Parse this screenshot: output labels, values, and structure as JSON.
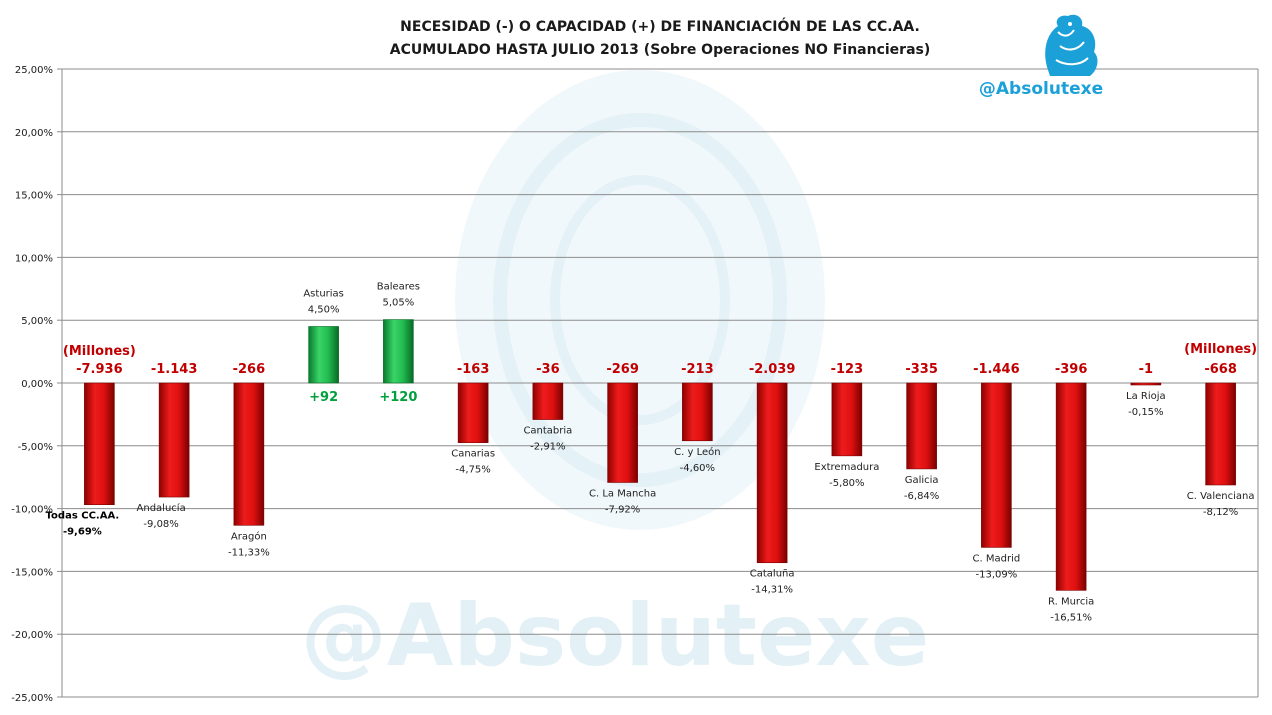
{
  "title_line1": "NECESIDAD (-) O CAPACIDAD (+) DE FINANCIACIÓN DE LAS CC.AA.",
  "title_line2": "ACUMULADO HASTA JULIO 2013 (Sobre Operaciones NO Financieras)",
  "watermark": "@Absolutexe",
  "handle": "@Absolutexe",
  "colors": {
    "negative": "#d10a0a",
    "positive": "#1db44a",
    "millions_neg": "#c00000",
    "millions_pos": "#00a03c",
    "handle": "#1ba0d8"
  },
  "chart_data": {
    "type": "bar",
    "title": "NECESIDAD (-) O CAPACIDAD (+) DE FINANCIACIÓN DE LAS CC.AA. ACUMULADO HASTA JULIO 2013 (Sobre Operaciones NO Financieras)",
    "ylim": [
      -25,
      25
    ],
    "yticks": [
      "25,00%",
      "20,00%",
      "15,00%",
      "10,00%",
      "5,00%",
      "0,00%",
      "-5,00%",
      "-10,00%",
      "-15,00%",
      "-20,00%",
      "-25,00%"
    ],
    "ytick_values": [
      25,
      20,
      15,
      10,
      5,
      0,
      -5,
      -10,
      -15,
      -20,
      -25
    ],
    "grid": true,
    "categories": [
      "Todas CC.AA.",
      "Andalucía",
      "Aragón",
      "Asturias",
      "Baleares",
      "Canarias",
      "Cantabria",
      "C. La Mancha",
      "C. y León",
      "Cataluña",
      "Extremadura",
      "Galicia",
      "C. Madrid",
      "R. Murcia",
      "La Rioja",
      "C. Valenciana"
    ],
    "values": [
      -9.69,
      -9.08,
      -11.33,
      4.5,
      5.05,
      -4.75,
      -2.91,
      -7.92,
      -4.6,
      -14.31,
      -5.8,
      -6.84,
      -13.09,
      -16.51,
      -0.15,
      -8.12
    ],
    "value_labels": [
      "-9,69%",
      "-9,08%",
      "-11,33%",
      "4,50%",
      "5,05%",
      "-4,75%",
      "-2,91%",
      "-7,92%",
      "-4,60%",
      "-14,31%",
      "-5,80%",
      "-6,84%",
      "-13,09%",
      "-16,51%",
      "-0,15%",
      "-8,12%"
    ],
    "millions_labels": [
      "-7.936",
      "-1.143",
      "-266",
      "+92",
      "+120",
      "-163",
      "-36",
      "-269",
      "-213",
      "-2.039",
      "-123",
      "-335",
      "-1.446",
      "-396",
      "-1",
      "-668"
    ],
    "annotations": [
      "(Millones)",
      "(Millones)"
    ]
  }
}
